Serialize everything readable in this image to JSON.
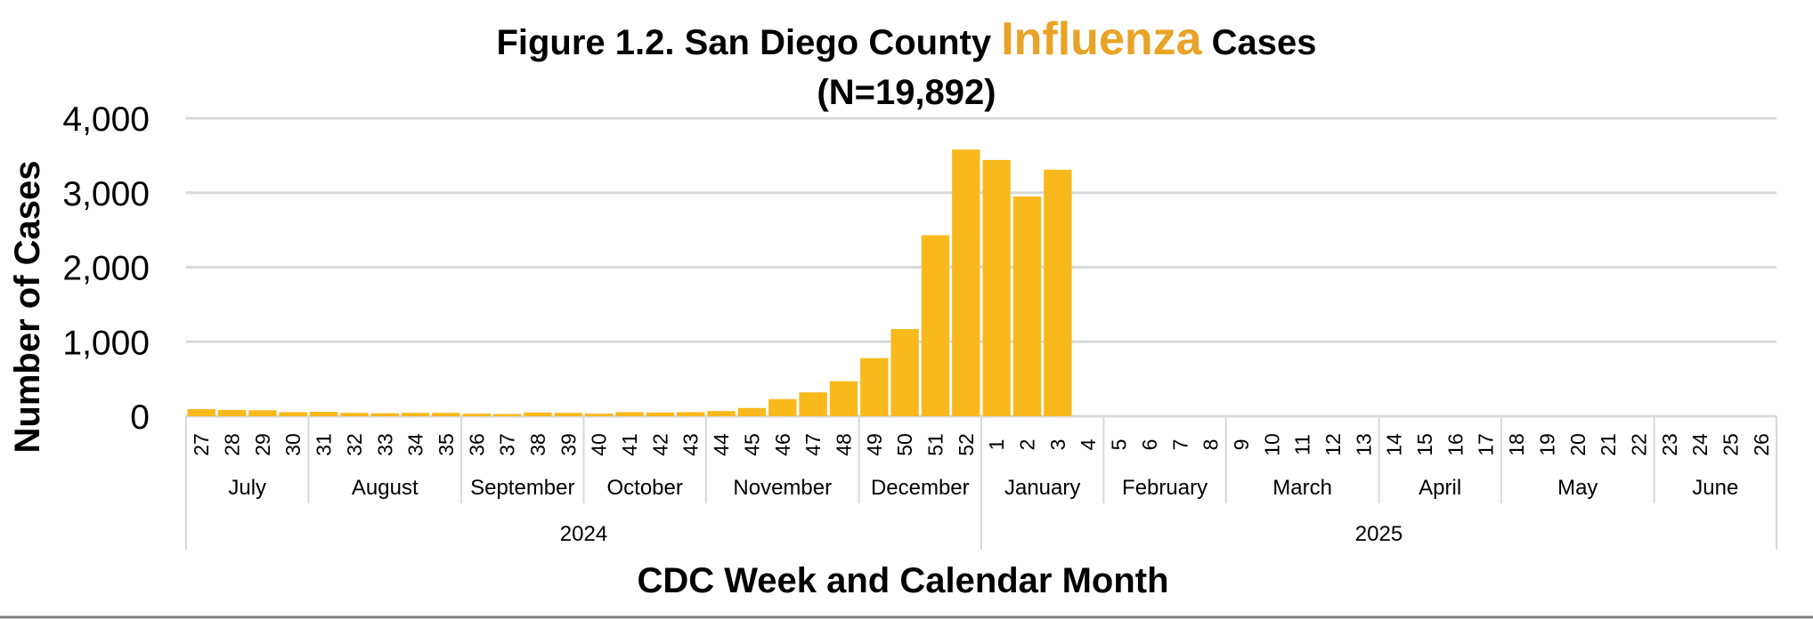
{
  "chart_data": {
    "type": "bar",
    "title": {
      "prefix": "Figure 1.2. San Diego County ",
      "highlight": "Influenza",
      "suffix": " Cases",
      "subtitle": "(N=19,892)"
    },
    "ylabel": "Number of Cases",
    "xlabel": "CDC Week and Calendar Month",
    "ylim": [
      0,
      4000
    ],
    "yticks": [
      "0",
      "1,000",
      "2,000",
      "3,000",
      "4,000"
    ],
    "ytick_values": [
      0,
      1000,
      2000,
      3000,
      4000
    ],
    "grid": true,
    "bar_color": "#F9B81C",
    "title_highlight_color": "#E9A326",
    "categories": [
      "27",
      "28",
      "29",
      "30",
      "31",
      "32",
      "33",
      "34",
      "35",
      "36",
      "37",
      "38",
      "39",
      "40",
      "41",
      "42",
      "43",
      "44",
      "45",
      "46",
      "47",
      "48",
      "49",
      "50",
      "51",
      "52",
      "1",
      "2",
      "3",
      "4",
      "5",
      "6",
      "7",
      "8",
      "9",
      "10",
      "11",
      "12",
      "13",
      "14",
      "15",
      "16",
      "17",
      "18",
      "19",
      "20",
      "21",
      "22",
      "23",
      "24",
      "25",
      "26"
    ],
    "values": [
      95,
      85,
      80,
      55,
      60,
      45,
      40,
      45,
      45,
      35,
      30,
      50,
      45,
      35,
      55,
      50,
      55,
      70,
      110,
      230,
      320,
      470,
      780,
      1170,
      2430,
      3580,
      3440,
      2950,
      3310,
      null,
      null,
      null,
      null,
      null,
      null,
      null,
      null,
      null,
      null,
      null,
      null,
      null,
      null,
      null,
      null,
      null,
      null,
      null,
      null,
      null,
      null,
      null
    ],
    "months": [
      {
        "name": "July",
        "weeks": 4
      },
      {
        "name": "August",
        "weeks": 5
      },
      {
        "name": "September",
        "weeks": 4
      },
      {
        "name": "October",
        "weeks": 4
      },
      {
        "name": "November",
        "weeks": 5
      },
      {
        "name": "December",
        "weeks": 4
      },
      {
        "name": "January",
        "weeks": 4
      },
      {
        "name": "February",
        "weeks": 4
      },
      {
        "name": "March",
        "weeks": 5
      },
      {
        "name": "April",
        "weeks": 4
      },
      {
        "name": "May",
        "weeks": 5
      },
      {
        "name": "June",
        "weeks": 4
      }
    ],
    "years": [
      {
        "name": "2024",
        "weeks": 26
      },
      {
        "name": "2025",
        "weeks": 26
      }
    ]
  }
}
